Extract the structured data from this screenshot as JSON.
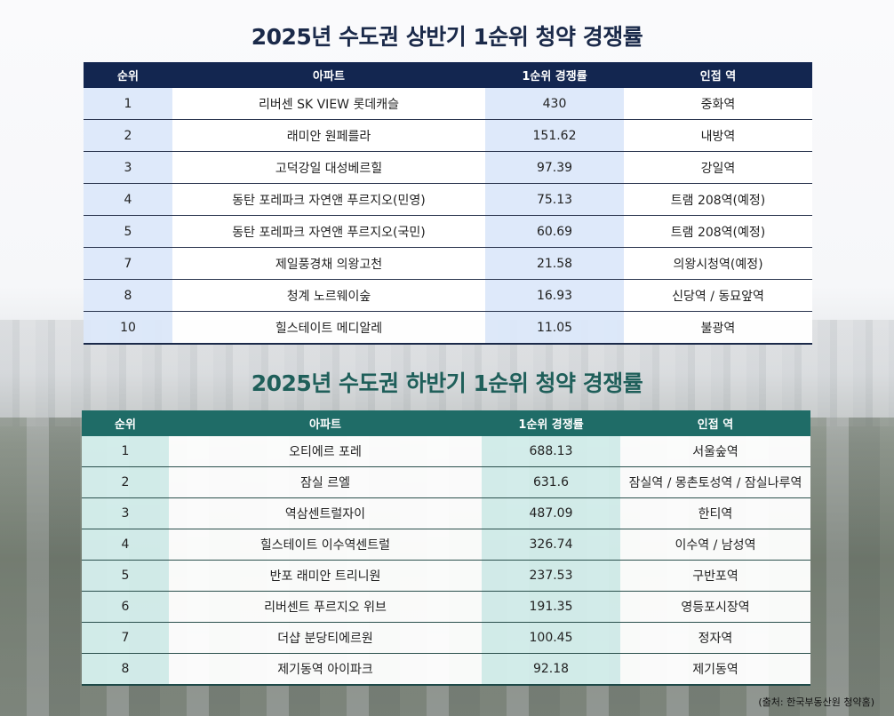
{
  "top": {
    "title": "2025년 수도권 상반기 1순위 청약 경쟁률",
    "headers": [
      "순위",
      "아파트",
      "1순위 경쟁률",
      "인접 역"
    ],
    "rows": [
      {
        "rank": "1",
        "name": "리버센 SK VIEW 롯데캐슬",
        "rate": "430",
        "station": "중화역"
      },
      {
        "rank": "2",
        "name": "래미안 원페를라",
        "rate": "151.62",
        "station": "내방역"
      },
      {
        "rank": "3",
        "name": "고덕강일 대성베르힐",
        "rate": "97.39",
        "station": "강일역"
      },
      {
        "rank": "4",
        "name": "동탄 포레파크 자연앤 푸르지오(민영)",
        "rate": "75.13",
        "station": "트램 208역(예정)"
      },
      {
        "rank": "5",
        "name": "동탄 포레파크 자연앤 푸르지오(국민)",
        "rate": "60.69",
        "station": "트램 208역(예정)"
      },
      {
        "rank": "7",
        "name": "제일풍경채 의왕고천",
        "rate": "21.58",
        "station": "의왕시청역(예정)"
      },
      {
        "rank": "8",
        "name": "청계 노르웨이숲",
        "rate": "16.93",
        "station": "신당역 / 동묘앞역"
      },
      {
        "rank": "10",
        "name": "힐스테이트 메디알레",
        "rate": "11.05",
        "station": "불광역"
      }
    ]
  },
  "bottom": {
    "title": "2025년 수도권 하반기 1순위 청약 경쟁률",
    "headers": [
      "순위",
      "아파트",
      "1순위 경쟁률",
      "인접 역"
    ],
    "rows": [
      {
        "rank": "1",
        "name": "오티에르 포레",
        "rate": "688.13",
        "station": "서울숲역"
      },
      {
        "rank": "2",
        "name": "잠실 르엘",
        "rate": "631.6",
        "station": "잠실역 / 몽촌토성역 / 잠실나루역"
      },
      {
        "rank": "3",
        "name": "역삼센트럴자이",
        "rate": "487.09",
        "station": "한티역"
      },
      {
        "rank": "4",
        "name": "힐스테이트 이수역센트럴",
        "rate": "326.74",
        "station": "이수역 / 남성역"
      },
      {
        "rank": "5",
        "name": "반포 래미안 트리니원",
        "rate": "237.53",
        "station": "구반포역"
      },
      {
        "rank": "6",
        "name": "리버센트 푸르지오 위브",
        "rate": "191.35",
        "station": "영등포시장역"
      },
      {
        "rank": "7",
        "name": "더샵 분당티에르원",
        "rate": "100.45",
        "station": "정자역"
      },
      {
        "rank": "8",
        "name": "제기동역 아이파크",
        "rate": "92.18",
        "station": "제기동역"
      }
    ]
  },
  "source": "(출처: 한국부동산원 청약홈)",
  "colors": {
    "top_header": "#132650",
    "top_highlight": "#dce8fa",
    "bottom_header": "#1f6c67",
    "bottom_highlight": "#d6f0ee",
    "top_title": "#1b2a4a",
    "bottom_title": "#1f5f5a"
  }
}
